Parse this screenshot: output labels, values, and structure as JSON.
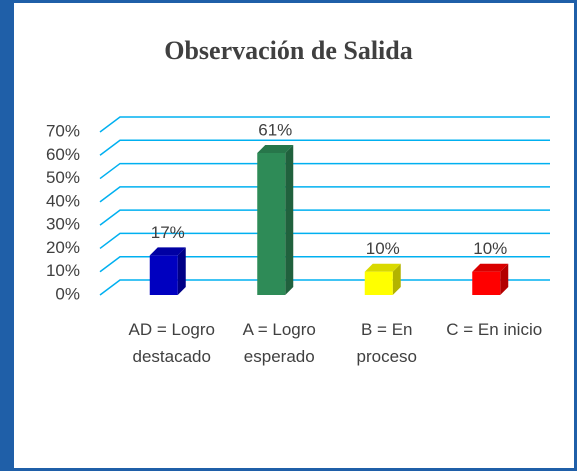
{
  "chart_data": {
    "type": "bar",
    "title": "Observación de Salida",
    "categories": [
      "AD = Logro destacado",
      "A = Logro esperado",
      "B = En proceso",
      "C = En inicio"
    ],
    "values": [
      17,
      61,
      10,
      10
    ],
    "value_labels": [
      "17%",
      "61%",
      "10%",
      "10%"
    ],
    "colors": [
      "#0000c0",
      "#2e8b57",
      "#ffff00",
      "#ff0000"
    ],
    "ylim": [
      0,
      70
    ],
    "yticks": [
      {
        "value": 0,
        "label": "0%"
      },
      {
        "value": 10,
        "label": "10%"
      },
      {
        "value": 20,
        "label": "20%"
      },
      {
        "value": 30,
        "label": "30%"
      },
      {
        "value": 40,
        "label": "40%"
      },
      {
        "value": 50,
        "label": "50%"
      },
      {
        "value": 60,
        "label": "60%"
      },
      {
        "value": 70,
        "label": "70%"
      }
    ],
    "grid": true
  }
}
